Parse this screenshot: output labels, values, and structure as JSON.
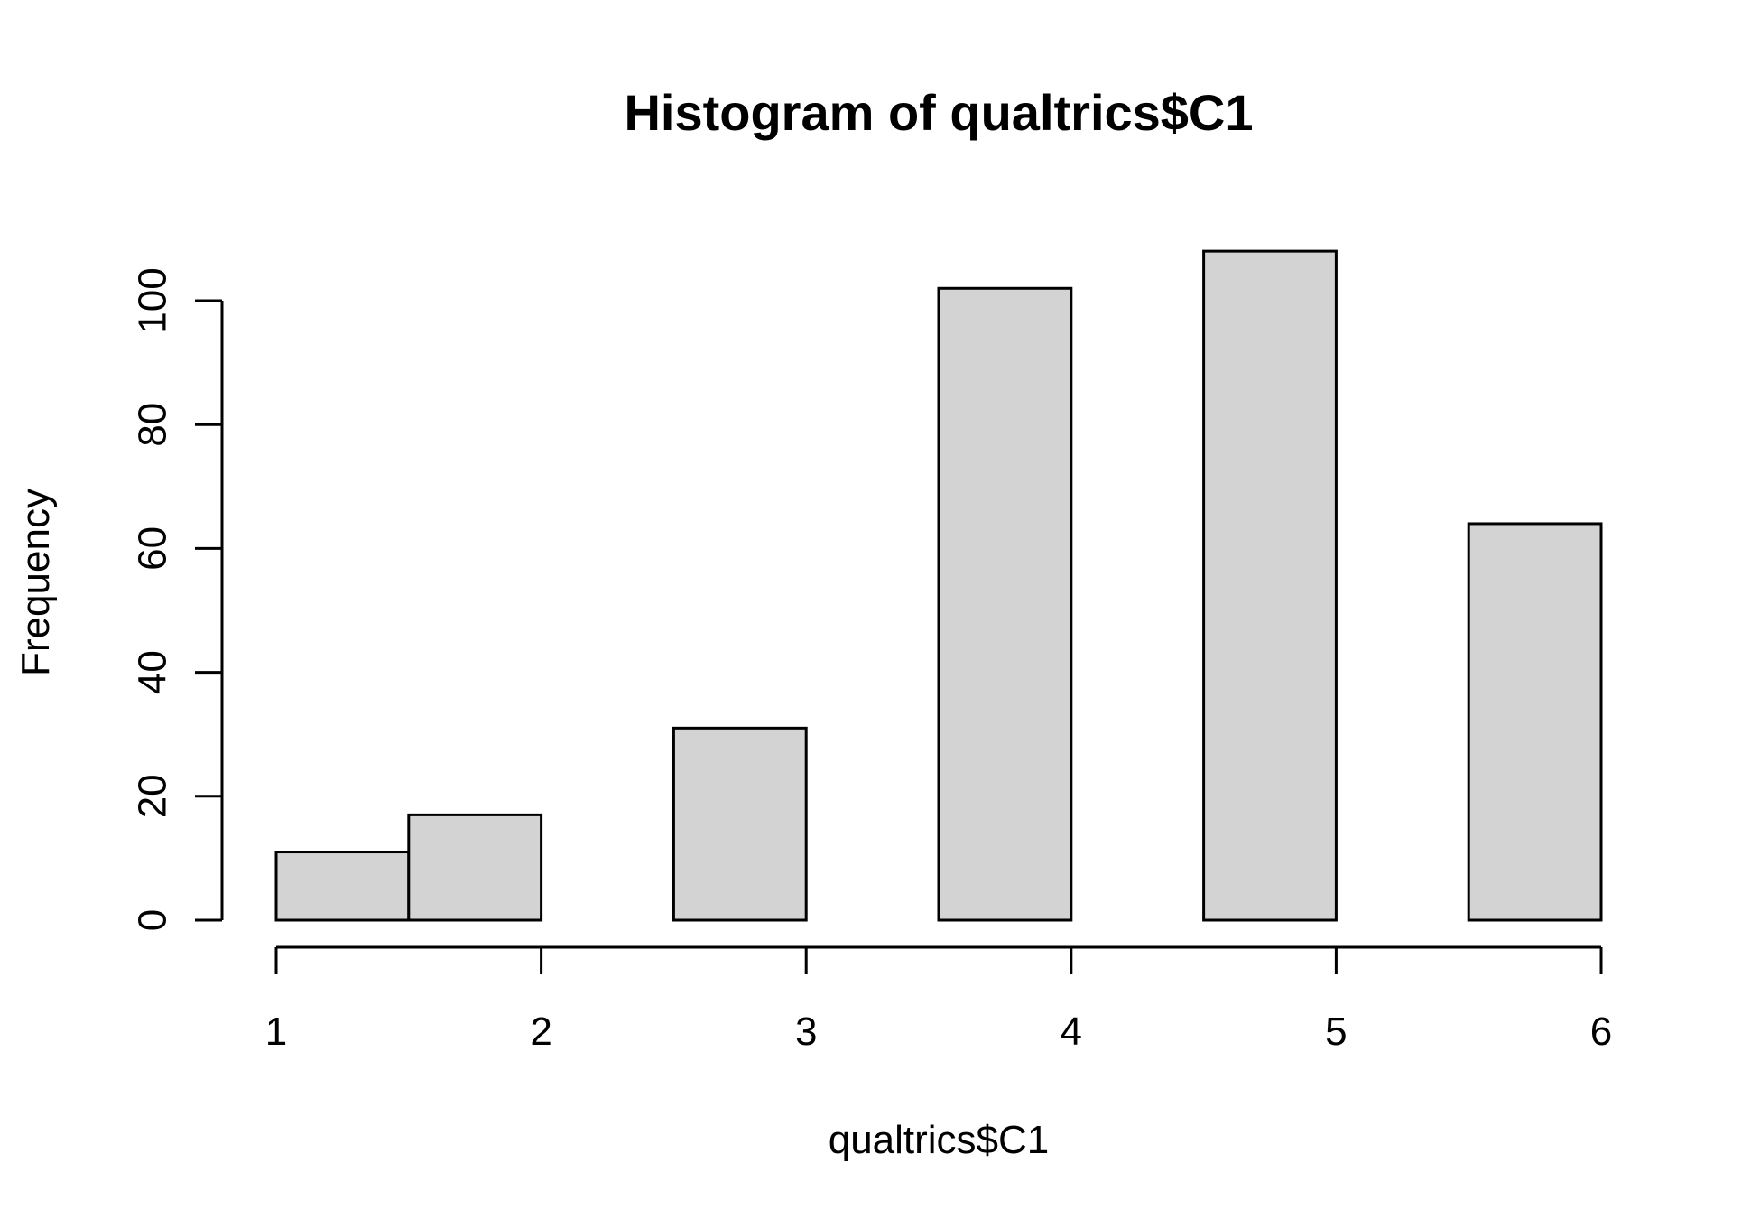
{
  "chart_data": {
    "type": "bar",
    "title": "Histogram of qualtrics$C1",
    "xlabel": "qualtrics$C1",
    "ylabel": "Frequency",
    "bins": [
      {
        "start": 1.0,
        "end": 1.5,
        "count": 11
      },
      {
        "start": 1.5,
        "end": 2.0,
        "count": 17
      },
      {
        "start": 2.0,
        "end": 2.5,
        "count": 0
      },
      {
        "start": 2.5,
        "end": 3.0,
        "count": 31
      },
      {
        "start": 3.0,
        "end": 3.5,
        "count": 0
      },
      {
        "start": 3.5,
        "end": 4.0,
        "count": 102
      },
      {
        "start": 4.0,
        "end": 4.5,
        "count": 0
      },
      {
        "start": 4.5,
        "end": 5.0,
        "count": 108
      },
      {
        "start": 5.0,
        "end": 5.5,
        "count": 0
      },
      {
        "start": 5.5,
        "end": 6.0,
        "count": 64
      }
    ],
    "xlim": [
      1,
      6
    ],
    "ylim": [
      0,
      108
    ],
    "xticks": [
      "1",
      "2",
      "3",
      "4",
      "5",
      "6"
    ],
    "yticks": [
      "0",
      "20",
      "40",
      "60",
      "80",
      "100"
    ],
    "grid": false,
    "bar_color": "#d3d3d3",
    "edge_color": "#000000"
  }
}
